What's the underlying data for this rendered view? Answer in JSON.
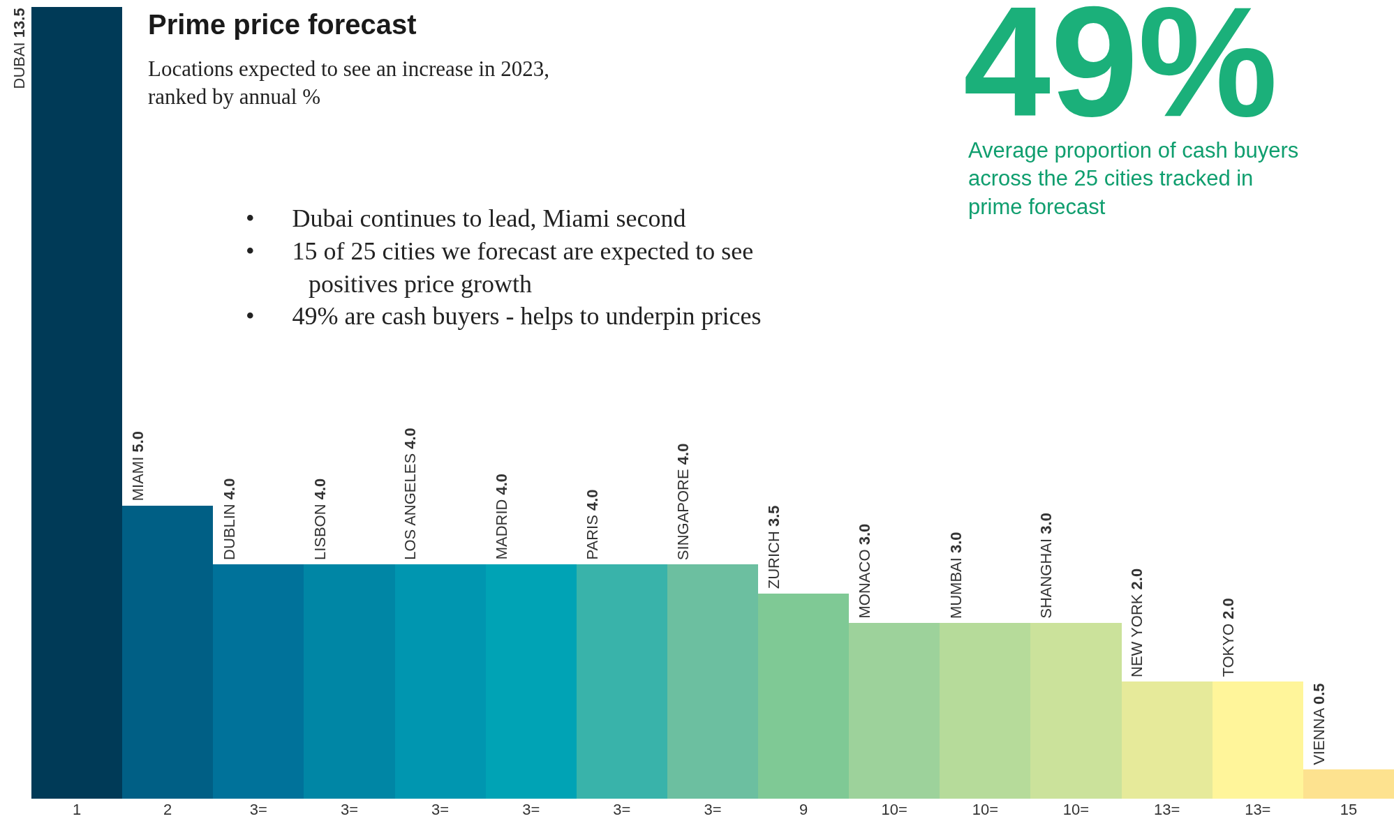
{
  "chart_data": {
    "type": "bar",
    "title": "Prime price forecast",
    "subtitle": "Locations expected to see an increase in 2023, ranked by annual %",
    "categories": [
      "1",
      "2",
      "3=",
      "3=",
      "3=",
      "3=",
      "3=",
      "3=",
      "9",
      "10=",
      "10=",
      "10=",
      "13=",
      "13=",
      "15"
    ],
    "values": [
      13.5,
      5.0,
      4.0,
      4.0,
      4.0,
      4.0,
      4.0,
      4.0,
      3.5,
      3.0,
      3.0,
      3.0,
      2.0,
      2.0,
      0.5
    ],
    "value_labels": [
      "DUBAI 13.5",
      "MIAMI 5.0",
      "DUBLIN 4.0",
      "LISBON 4.0",
      "LOS ANGELES 4.0",
      "MADRID 4.0",
      "PARIS 4.0",
      "SINGAPORE 4.0",
      "ZURICH 3.5",
      "MONACO 3.0",
      "MUMBAI 3.0",
      "SHANGHAI 3.0",
      "NEW YORK 2.0",
      "TOKYO 2.0",
      "VIENNA 0.5"
    ],
    "colors": [
      "#003a57",
      "#005f85",
      "#00729a",
      "#0086a5",
      "#0096b0",
      "#00a3b5",
      "#39b3aa",
      "#6cbfa0",
      "#7fc995",
      "#9dd29b",
      "#b6db9a",
      "#cbe29b",
      "#e6ea9a",
      "#fff59a",
      "#fde28f"
    ],
    "ylim": [
      0,
      13.5
    ],
    "annotations": [
      "• Dubai continues to lead, Miami second",
      "• 15 of 25 cities we forecast are expected to see positives price growth",
      "• 49% are cash buyers - helps to underpin prices",
      "49%",
      "Average proportion of cash buyers across the 25 cities tracked in prime forecast"
    ]
  }
}
